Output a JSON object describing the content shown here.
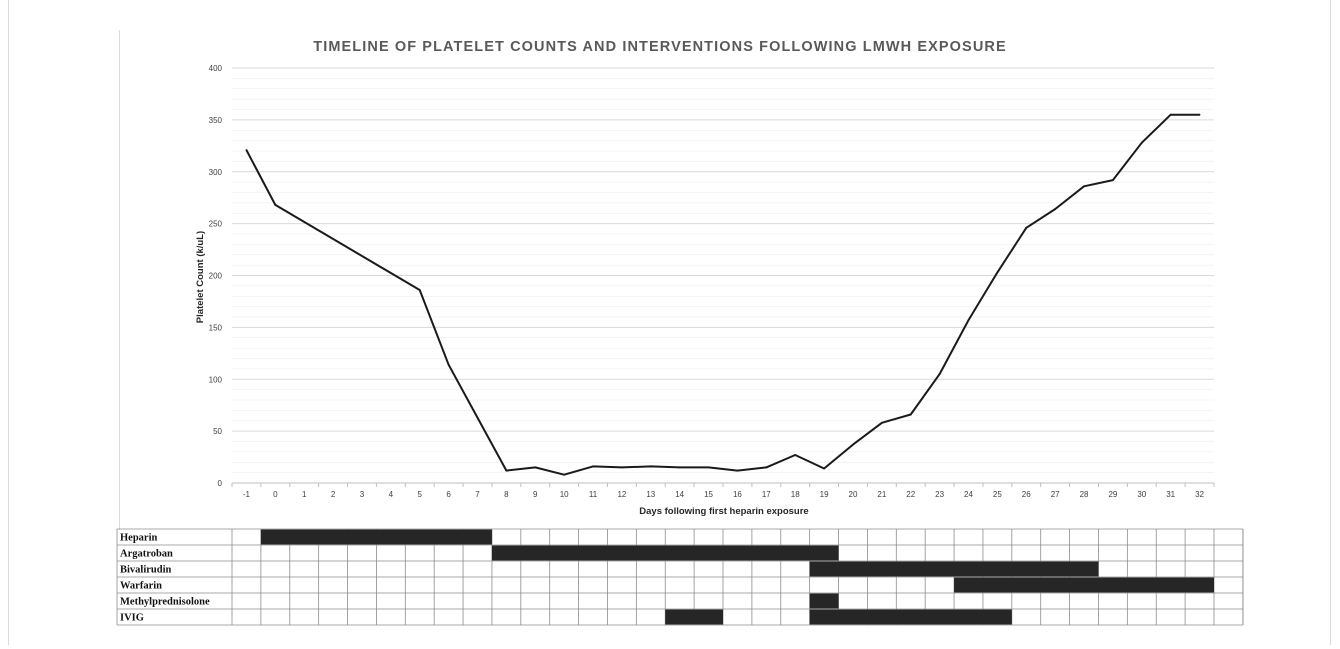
{
  "chart_data": {
    "type": "line",
    "title": "TIMELINE OF PLATELET COUNTS AND INTERVENTIONS FOLLOWING LMWH EXPOSURE",
    "xlabel": "Days following first heparin exposure",
    "ylabel": "Platelet Count (k/uL)",
    "x": [
      -1,
      0,
      5,
      6,
      8,
      9,
      10,
      11,
      12,
      13,
      14,
      15,
      16,
      17,
      18,
      19,
      20,
      21,
      22,
      23,
      24,
      25,
      26,
      27,
      28,
      29,
      30,
      31,
      32
    ],
    "categories": [
      "-1",
      "0",
      "1",
      "2",
      "3",
      "4",
      "5",
      "6",
      "7",
      "8",
      "9",
      "10",
      "11",
      "12",
      "13",
      "14",
      "15",
      "16",
      "17",
      "18",
      "19",
      "20",
      "21",
      "22",
      "23",
      "24",
      "25",
      "26",
      "27",
      "28",
      "29",
      "30",
      "31",
      "32"
    ],
    "series": [
      {
        "values": [
          321,
          268,
          186,
          114,
          12,
          15,
          8,
          16,
          15,
          16,
          15,
          15,
          12,
          15,
          27,
          14,
          37,
          58,
          66,
          105,
          157,
          203,
          246,
          264,
          286,
          292,
          328,
          355,
          355
        ]
      }
    ],
    "ylim": [
      0,
      400
    ],
    "yticks": [
      "0",
      "50",
      "100",
      "150",
      "200",
      "250",
      "300",
      "350",
      "400"
    ],
    "grid": true,
    "line_color": "#1a1a1a",
    "grid_color": "#d9d9d9",
    "bar_color": "#262626",
    "interventions": [
      {
        "label": "Heparin",
        "periods": [
          [
            0,
            8
          ]
        ]
      },
      {
        "label": "Argatroban",
        "periods": [
          [
            8,
            20
          ]
        ]
      },
      {
        "label": "Bivalirudin",
        "periods": [
          [
            19,
            29
          ]
        ]
      },
      {
        "label": "Warfarin",
        "periods": [
          [
            24,
            33
          ]
        ]
      },
      {
        "label": "Methylprednisolone",
        "periods": [
          [
            19,
            20
          ]
        ]
      },
      {
        "label": "IVIG",
        "periods": [
          [
            14,
            16
          ],
          [
            19,
            26
          ]
        ]
      }
    ]
  }
}
